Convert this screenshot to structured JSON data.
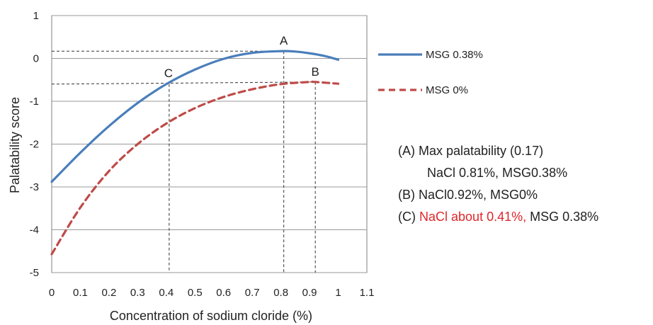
{
  "chart_data": {
    "type": "line",
    "title": "",
    "xlabel": "Concentration of sodium cloride (%)",
    "ylabel": "Palatability  score",
    "xlim": [
      0,
      1.1
    ],
    "ylim": [
      -5,
      1
    ],
    "x_ticks": [
      "0",
      "0.1",
      "0.2",
      "0.3",
      "0.4",
      "0.5",
      "0.6",
      "0.7",
      "0.8",
      "0.9",
      "1",
      "1.1"
    ],
    "y_ticks": [
      "1",
      "0",
      "-1",
      "-2",
      "-3",
      "-4",
      "-5"
    ],
    "grid": "horizontal",
    "legend_position": "right",
    "series": [
      {
        "name": "MSG 0.38%",
        "color": "#4a7ebb",
        "style": "solid",
        "x": [
          0,
          0.1,
          0.2,
          0.3,
          0.4,
          0.5,
          0.6,
          0.7,
          0.8,
          0.85,
          0.9,
          0.95,
          1.0
        ],
        "y": [
          -2.88,
          -2.2,
          -1.58,
          -1.04,
          -0.6,
          -0.26,
          -0.01,
          0.13,
          0.17,
          0.16,
          0.12,
          0.06,
          -0.03
        ]
      },
      {
        "name": "MSG 0%",
        "color": "#be4b48",
        "style": "dashed",
        "x": [
          0,
          0.1,
          0.2,
          0.3,
          0.4,
          0.5,
          0.6,
          0.7,
          0.8,
          0.9,
          0.92,
          1.0
        ],
        "y": [
          -4.57,
          -3.48,
          -2.63,
          -2.0,
          -1.52,
          -1.16,
          -0.9,
          -0.72,
          -0.6,
          -0.55,
          -0.55,
          -0.59
        ]
      }
    ],
    "points": [
      {
        "label": "A",
        "x": 0.81,
        "y": 0.17
      },
      {
        "label": "B",
        "x": 0.92,
        "y": -0.55
      },
      {
        "label": "C",
        "x": 0.41,
        "y": -0.6
      }
    ],
    "annotations": {
      "a_line1": "(A) Max palatability (0.17)",
      "a_line2": "NaCl 0.81%, MSG0.38%",
      "b_line": "(B) NaCl0.92%, MSG0%",
      "c_prefix": "(C)",
      "c_red": "NaCl about 0.41%,",
      "c_suffix": "MSG 0.38%"
    }
  }
}
